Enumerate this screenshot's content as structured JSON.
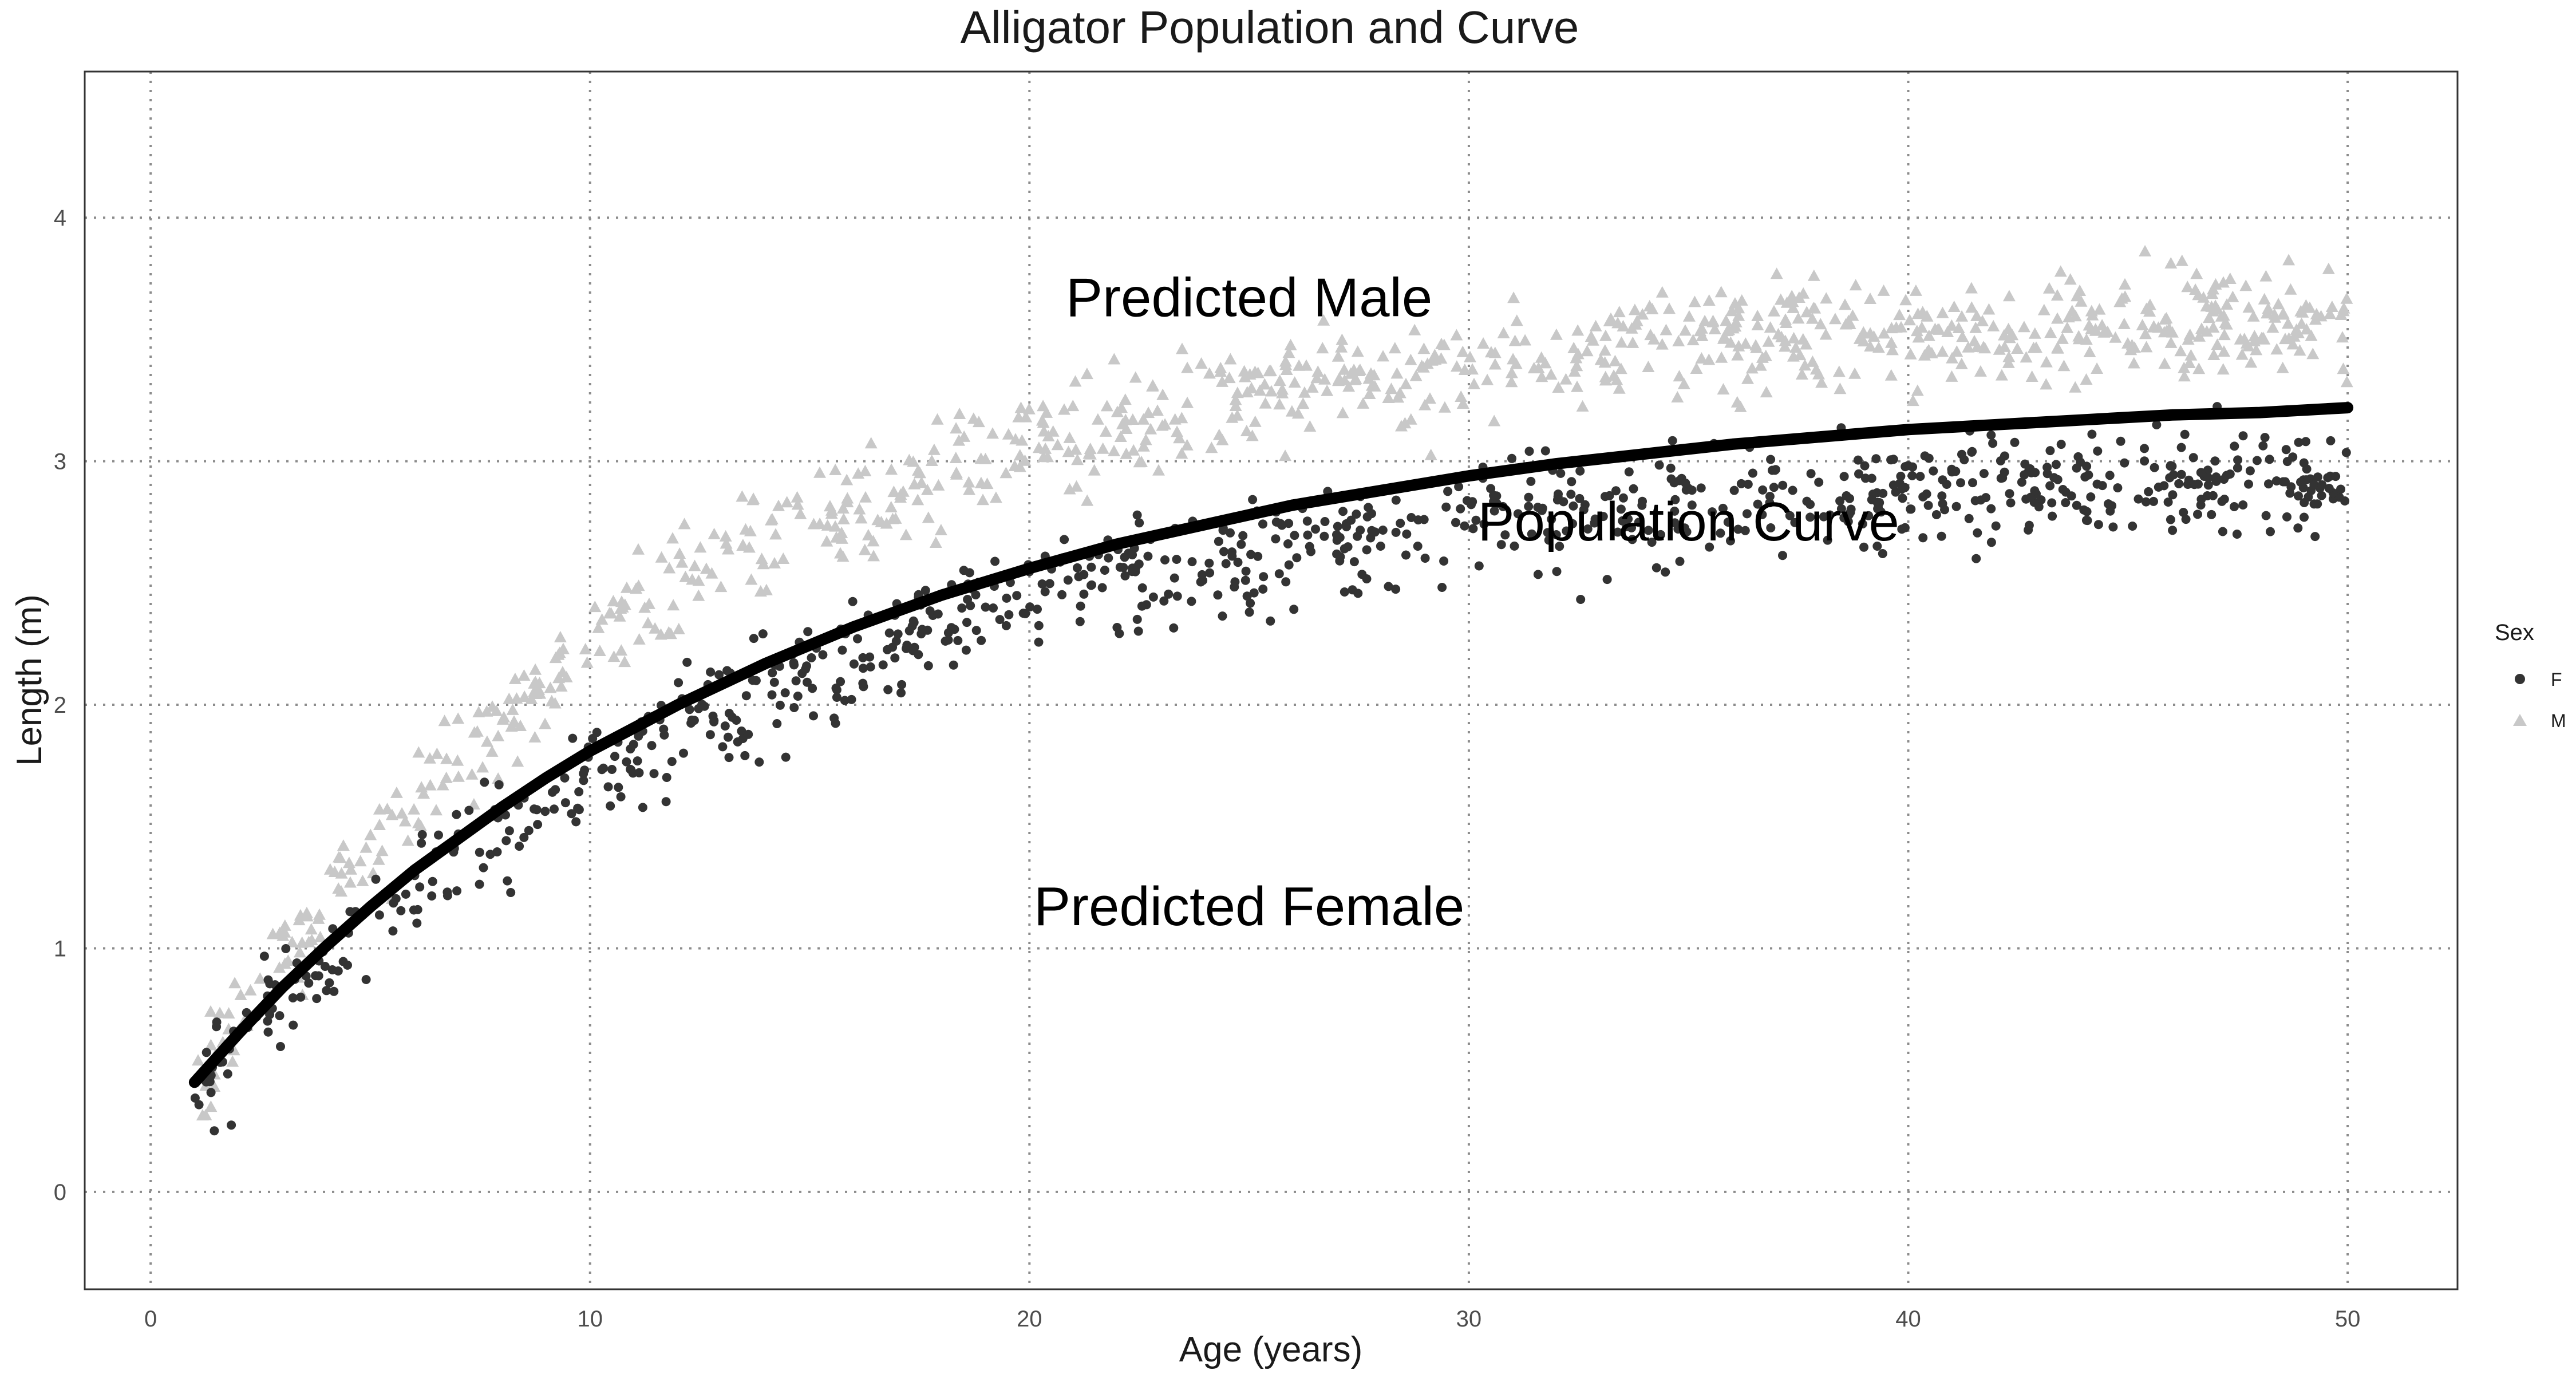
{
  "chart_data": {
    "type": "scatter",
    "title": "Alligator Population and Curve",
    "xlabel": "Age (years)",
    "ylabel": "Length (m)",
    "xlim": [
      -1.5,
      52.5
    ],
    "ylim": [
      -0.4,
      4.6
    ],
    "x_ticks": [
      0,
      10,
      20,
      30,
      40,
      50
    ],
    "y_ticks": [
      0,
      1,
      2,
      3,
      4
    ],
    "grid": true,
    "legend": {
      "title": "Sex",
      "placement": "right",
      "entries": [
        {
          "label": "F",
          "shape": "circle",
          "color": "#333333"
        },
        {
          "label": "M",
          "shape": "triangle",
          "color": "#c8c8c8"
        }
      ]
    },
    "series": [
      {
        "name": "F",
        "shape": "circle",
        "color": "#333333",
        "count": 900,
        "x_range": [
          1,
          50
        ],
        "note_curve_offset": -0.32
      },
      {
        "name": "M",
        "shape": "triangle",
        "color": "#c8c8c8",
        "count": 900,
        "x_range": [
          1,
          50
        ],
        "note_curve_offset": 0.32
      }
    ],
    "curve": {
      "name": "Population Curve",
      "color": "#000000",
      "x": [
        1,
        2,
        3,
        4,
        5,
        6,
        7,
        8,
        9,
        10,
        12,
        14,
        16,
        18,
        20,
        22,
        24,
        26,
        28,
        30,
        32,
        34,
        36,
        38,
        40,
        42,
        44,
        46,
        48,
        50
      ],
      "y": [
        0.45,
        0.65,
        0.84,
        1.01,
        1.17,
        1.32,
        1.45,
        1.58,
        1.7,
        1.81,
        2.0,
        2.17,
        2.32,
        2.45,
        2.56,
        2.66,
        2.74,
        2.82,
        2.88,
        2.94,
        2.99,
        3.03,
        3.07,
        3.1,
        3.13,
        3.15,
        3.17,
        3.19,
        3.2,
        3.22
      ]
    },
    "annotations": [
      {
        "text": "Predicted Male",
        "x": 25,
        "y": 3.67
      },
      {
        "text": "Population Curve",
        "x": 35,
        "y": 2.75
      },
      {
        "text": "Predicted Female",
        "x": 25,
        "y": 1.17
      }
    ]
  }
}
